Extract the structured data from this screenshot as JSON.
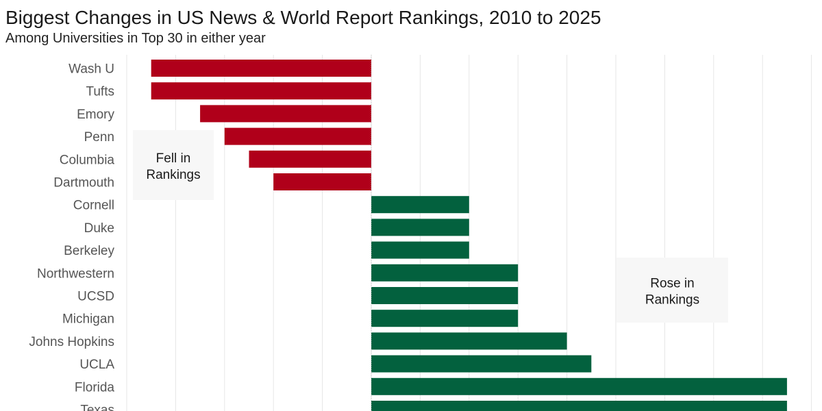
{
  "title": "Biggest Changes in US News & World Report Rankings, 2010 to 2025",
  "subtitle": "Among Universities in Top 30 in either year",
  "colors": {
    "fell": "#B0001A",
    "rose": "#03613E",
    "grid": "#e6e6e6"
  },
  "chart_data": {
    "type": "bar",
    "orientation": "horizontal",
    "title": "Biggest Changes in US News & World Report Rankings, 2010 to 2025",
    "subtitle": "Among Universities in Top 30 in either year",
    "categories": [
      "Wash U",
      "Tufts",
      "Emory",
      "Penn",
      "Columbia",
      "Dartmouth",
      "Cornell",
      "Duke",
      "Berkeley",
      "Northwestern",
      "UCSD",
      "Michigan",
      "Johns Hopkins",
      "UCLA",
      "Florida",
      "Texas"
    ],
    "values": [
      -9,
      -9,
      -7,
      -6,
      -5,
      -4,
      4,
      4,
      4,
      6,
      6,
      6,
      8,
      9,
      17,
      17
    ],
    "xlim": [
      -10,
      18
    ],
    "grid": true,
    "annotations": [
      {
        "text_line1": "Fell in",
        "text_line2": "Rankings"
      },
      {
        "text_line1": "Rose in",
        "text_line2": "Rankings"
      }
    ]
  }
}
